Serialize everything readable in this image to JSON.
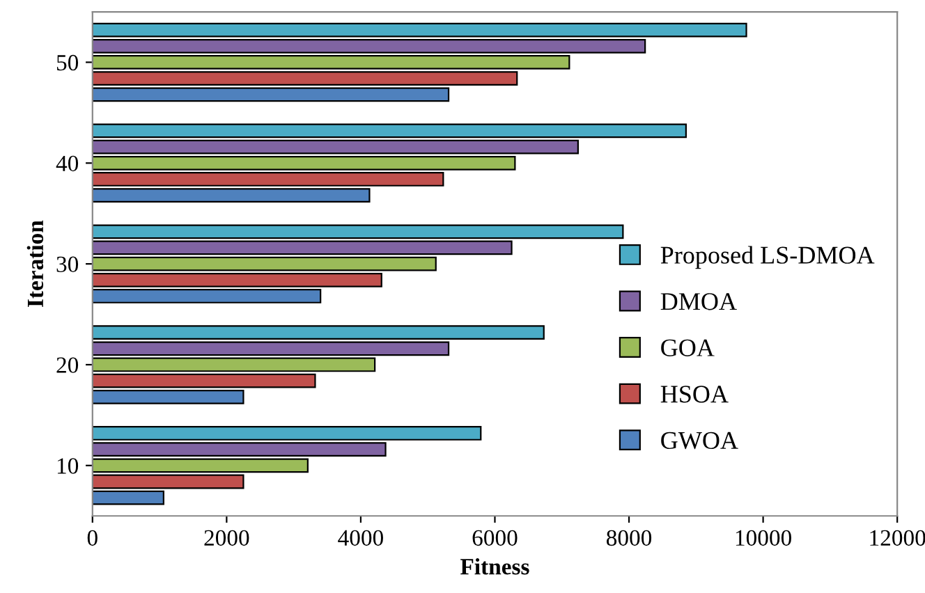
{
  "chart_data": {
    "type": "bar",
    "orientation": "horizontal",
    "xlabel": "Fitness",
    "ylabel": "Iteration",
    "categories": [
      "50",
      "40",
      "30",
      "20",
      "10"
    ],
    "series": [
      {
        "name": "Proposed LS-DMOA",
        "color": "#4bacc6",
        "values": [
          9750,
          8850,
          7910,
          6730,
          5790
        ]
      },
      {
        "name": "DMOA",
        "color": "#8064a2",
        "values": [
          8240,
          7240,
          6250,
          5310,
          4370
        ]
      },
      {
        "name": "GOA",
        "color": "#9bbb59",
        "values": [
          7110,
          6300,
          5120,
          4210,
          3210
        ]
      },
      {
        "name": "HSOA",
        "color": "#c0504d",
        "values": [
          6330,
          5230,
          4310,
          3320,
          2250
        ]
      },
      {
        "name": "GWOA",
        "color": "#4f81bd",
        "values": [
          5310,
          4130,
          3400,
          2250,
          1060
        ]
      }
    ],
    "xlim": [
      0,
      12000
    ],
    "xticks": [
      0,
      2000,
      4000,
      6000,
      8000,
      10000,
      12000
    ],
    "grid": false,
    "legend": "right"
  }
}
